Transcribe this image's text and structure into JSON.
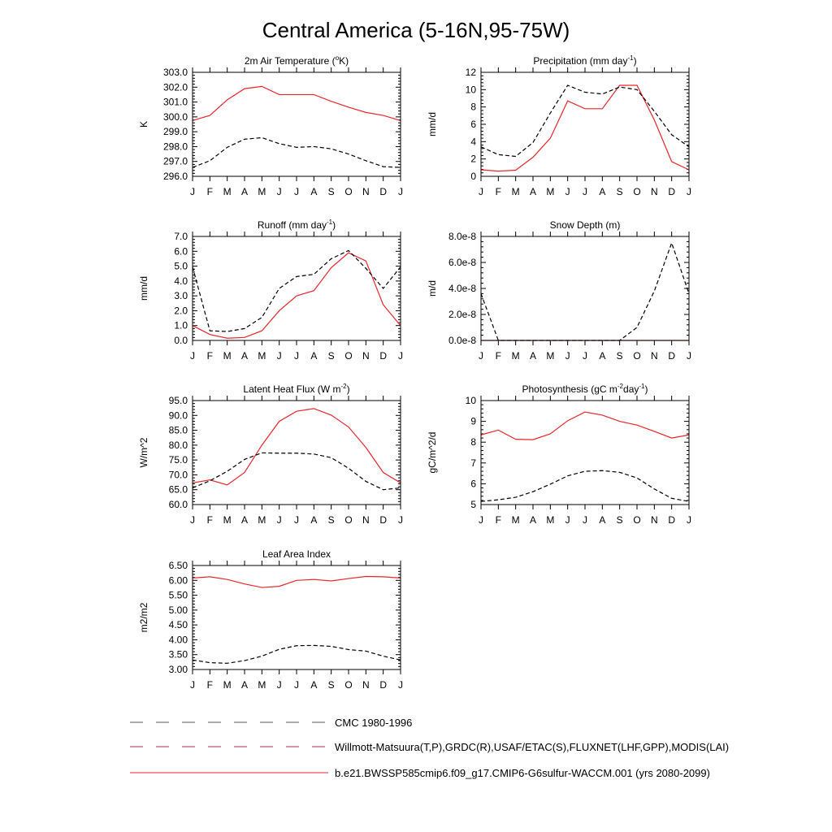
{
  "figure": {
    "title": "Central America (5-16N,95-75W)",
    "colors": {
      "model": "#e8262b",
      "obs": "#000000",
      "axis": "#000000"
    },
    "legend": [
      {
        "label": "CMC 1980-1996",
        "style": "dashed"
      },
      {
        "label": "Willmott-Matsuura(T,P),GRDC(R),USAF/ETAC(S),FLUXNET(LHF,GPP),MODIS(LAI)",
        "style": "dashed"
      },
      {
        "label": "b.e21.BWSSP585cmip6.f09_g17.CMIP6-G6sulfur-WACCM.001 (yrs 2080-2099)",
        "style": "solid"
      }
    ]
  },
  "chart_data": [
    {
      "id": "t2m",
      "type": "line",
      "title": "2m Air Temperature (",
      "title_sup": "o",
      "title_after": "K)",
      "ylabel": "K",
      "categories": [
        "J",
        "F",
        "M",
        "A",
        "M",
        "J",
        "J",
        "A",
        "S",
        "O",
        "N",
        "D",
        "J"
      ],
      "ylim": [
        296.0,
        303.0
      ],
      "yticks": [
        "296.0",
        "297.0",
        "298.0",
        "299.0",
        "300.0",
        "301.0",
        "302.0",
        "303.0"
      ],
      "series": [
        {
          "role": "model",
          "values": [
            299.75,
            300.1,
            301.15,
            301.9,
            302.05,
            301.5,
            301.5,
            301.5,
            301.05,
            300.65,
            300.3,
            300.1,
            299.75
          ]
        },
        {
          "role": "obs",
          "values": [
            296.6,
            297.05,
            297.95,
            298.5,
            298.6,
            298.2,
            297.95,
            298.0,
            297.85,
            297.5,
            297.05,
            296.65,
            296.6
          ]
        }
      ]
    },
    {
      "id": "precip",
      "type": "line",
      "title": "Precipitation (mm day",
      "title_sup": "-1",
      "title_after": ")",
      "ylabel": "mm/d",
      "categories": [
        "J",
        "F",
        "M",
        "A",
        "M",
        "J",
        "J",
        "A",
        "S",
        "O",
        "N",
        "D",
        "J"
      ],
      "ylim": [
        0,
        12
      ],
      "yticks": [
        "0",
        "2",
        "4",
        "6",
        "8",
        "10",
        "12"
      ],
      "series": [
        {
          "role": "model",
          "values": [
            0.75,
            0.6,
            0.7,
            2.2,
            4.4,
            8.7,
            7.8,
            7.8,
            10.5,
            10.5,
            6.5,
            1.7,
            0.75
          ]
        },
        {
          "role": "obs",
          "values": [
            3.4,
            2.5,
            2.3,
            3.9,
            7.3,
            10.5,
            9.7,
            9.5,
            10.3,
            10.0,
            7.5,
            4.8,
            3.4
          ]
        }
      ]
    },
    {
      "id": "runoff",
      "type": "line",
      "title": "Runoff (mm day",
      "title_sup": "-1",
      "title_after": ")",
      "ylabel": "mm/d",
      "categories": [
        "J",
        "F",
        "M",
        "A",
        "M",
        "J",
        "J",
        "A",
        "S",
        "O",
        "N",
        "D",
        "J"
      ],
      "ylim": [
        0,
        7
      ],
      "yticks": [
        "0.0",
        "1.0",
        "2.0",
        "3.0",
        "4.0",
        "5.0",
        "6.0",
        "7.0"
      ],
      "series": [
        {
          "role": "model",
          "values": [
            1.0,
            0.4,
            0.15,
            0.2,
            0.65,
            2.0,
            3.0,
            3.35,
            4.9,
            5.9,
            5.35,
            2.4,
            1.0
          ]
        },
        {
          "role": "obs",
          "values": [
            4.95,
            0.65,
            0.6,
            0.8,
            1.55,
            3.5,
            4.3,
            4.45,
            5.5,
            6.05,
            4.85,
            3.5,
            4.95
          ]
        }
      ]
    },
    {
      "id": "snow",
      "type": "line",
      "title": "Snow Depth (m)",
      "title_sup": "",
      "title_after": "",
      "ylabel": "m/d",
      "categories": [
        "J",
        "F",
        "M",
        "A",
        "M",
        "J",
        "J",
        "A",
        "S",
        "O",
        "N",
        "D",
        "J"
      ],
      "ylim": [
        0,
        8e-08
      ],
      "yticks": [
        "0.0e-8",
        "2.0e-8",
        "4.0e-8",
        "6.0e-8",
        "8.0e-8"
      ],
      "series": [
        {
          "role": "model",
          "values": [
            0,
            0,
            0,
            0,
            0,
            0,
            0,
            0,
            0,
            0,
            0,
            0,
            0
          ]
        },
        {
          "role": "obs",
          "values": [
            3.6e-08,
            0,
            0,
            0,
            0,
            0,
            0,
            0,
            0,
            1e-08,
            3.8e-08,
            7.5e-08,
            3.6e-08
          ]
        }
      ]
    },
    {
      "id": "lhf",
      "type": "line",
      "title": "Latent Heat Flux (W m",
      "title_sup": "-2",
      "title_after": ")",
      "ylabel": "W/m^2",
      "categories": [
        "J",
        "F",
        "M",
        "A",
        "M",
        "J",
        "J",
        "A",
        "S",
        "O",
        "N",
        "D",
        "J"
      ],
      "ylim": [
        60,
        95
      ],
      "yticks": [
        "60.0",
        "65.0",
        "70.0",
        "75.0",
        "80.0",
        "85.0",
        "90.0",
        "95.0"
      ],
      "series": [
        {
          "role": "model",
          "values": [
            67.3,
            68.3,
            66.6,
            70.8,
            80.0,
            88.0,
            91.4,
            92.3,
            90.1,
            86.1,
            79.2,
            70.8,
            67.3
          ]
        },
        {
          "role": "obs",
          "values": [
            65.6,
            68.0,
            71.2,
            75.2,
            77.4,
            77.3,
            77.3,
            77.0,
            75.8,
            72.2,
            67.8,
            65.0,
            65.6
          ]
        }
      ]
    },
    {
      "id": "gpp",
      "type": "line",
      "title": "Photosynthesis (gC m",
      "title_sup": "-2",
      "title_after": "day",
      "title_sup2": "-1",
      "title_after2": ")",
      "ylabel": "gC/m^2/d",
      "categories": [
        "J",
        "F",
        "M",
        "A",
        "M",
        "J",
        "J",
        "A",
        "S",
        "O",
        "N",
        "D",
        "J"
      ],
      "ylim": [
        5,
        10
      ],
      "yticks": [
        "5",
        "6",
        "7",
        "8",
        "9",
        "10"
      ],
      "series": [
        {
          "role": "model",
          "values": [
            8.35,
            8.58,
            8.14,
            8.12,
            8.4,
            9.03,
            9.45,
            9.3,
            9.0,
            8.82,
            8.52,
            8.2,
            8.35
          ]
        },
        {
          "role": "obs",
          "values": [
            5.15,
            5.23,
            5.35,
            5.62,
            5.98,
            6.38,
            6.6,
            6.63,
            6.55,
            6.28,
            5.75,
            5.3,
            5.15
          ]
        }
      ]
    },
    {
      "id": "lai",
      "type": "line",
      "title": "Leaf Area Index",
      "title_sup": "",
      "title_after": "",
      "ylabel": "m2/m2",
      "categories": [
        "J",
        "F",
        "M",
        "A",
        "M",
        "J",
        "J",
        "A",
        "S",
        "O",
        "N",
        "D",
        "J"
      ],
      "ylim": [
        3.0,
        6.5
      ],
      "yticks": [
        "3.00",
        "3.50",
        "4.00",
        "4.50",
        "5.00",
        "5.50",
        "6.00",
        "6.50"
      ],
      "series": [
        {
          "role": "model",
          "values": [
            6.08,
            6.12,
            6.03,
            5.88,
            5.76,
            5.8,
            6.0,
            6.03,
            5.98,
            6.06,
            6.13,
            6.12,
            6.08
          ]
        },
        {
          "role": "obs",
          "values": [
            3.32,
            3.23,
            3.21,
            3.3,
            3.45,
            3.68,
            3.8,
            3.81,
            3.78,
            3.67,
            3.62,
            3.45,
            3.32
          ]
        }
      ]
    }
  ]
}
